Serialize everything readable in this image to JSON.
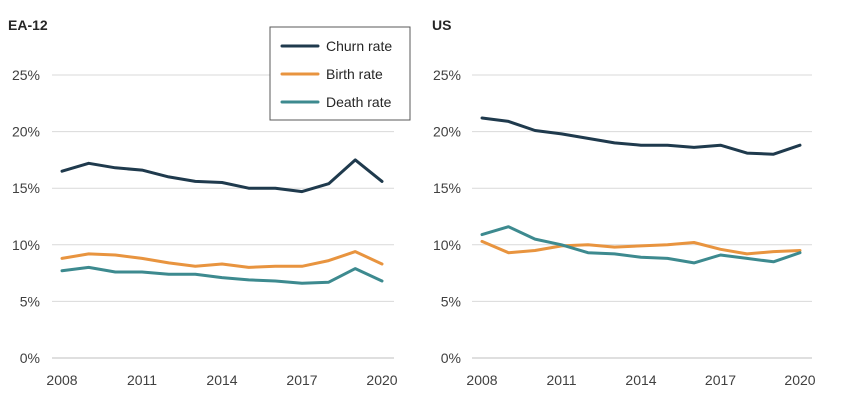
{
  "legend": [
    {
      "name": "Churn rate",
      "color": "#1f3a4d"
    },
    {
      "name": "Birth rate",
      "color": "#e8943f"
    },
    {
      "name": "Death rate",
      "color": "#3d8a8f"
    }
  ],
  "chart_data": [
    {
      "type": "line",
      "title": "EA-12",
      "x": [
        2008,
        2009,
        2010,
        2011,
        2012,
        2013,
        2014,
        2015,
        2016,
        2017,
        2018,
        2019,
        2020
      ],
      "xticks": [
        "2008",
        "2011",
        "2014",
        "2017",
        "2020"
      ],
      "yticks": [
        "0%",
        "5%",
        "10%",
        "15%",
        "20%",
        "25%"
      ],
      "ylim": [
        0,
        25
      ],
      "grid": true,
      "legend_position": "top-right",
      "series": [
        {
          "name": "Churn rate",
          "color": "#1f3a4d",
          "values": [
            16.5,
            17.2,
            16.8,
            16.6,
            16.0,
            15.6,
            15.5,
            15.0,
            15.0,
            14.7,
            15.4,
            17.5,
            15.6
          ]
        },
        {
          "name": "Birth rate",
          "color": "#e8943f",
          "values": [
            8.8,
            9.2,
            9.1,
            8.8,
            8.4,
            8.1,
            8.3,
            8.0,
            8.1,
            8.1,
            8.6,
            9.4,
            8.3
          ]
        },
        {
          "name": "Death rate",
          "color": "#3d8a8f",
          "values": [
            7.7,
            8.0,
            7.6,
            7.6,
            7.4,
            7.4,
            7.1,
            6.9,
            6.8,
            6.6,
            6.7,
            7.9,
            6.8
          ]
        }
      ]
    },
    {
      "type": "line",
      "title": "US",
      "x": [
        2008,
        2009,
        2010,
        2011,
        2012,
        2013,
        2014,
        2015,
        2016,
        2017,
        2018,
        2019,
        2020
      ],
      "xticks": [
        "2008",
        "2011",
        "2014",
        "2017",
        "2020"
      ],
      "yticks": [
        "0%",
        "5%",
        "10%",
        "15%",
        "20%",
        "25%"
      ],
      "ylim": [
        0,
        25
      ],
      "grid": true,
      "series": [
        {
          "name": "Churn rate",
          "color": "#1f3a4d",
          "values": [
            21.2,
            20.9,
            20.1,
            19.8,
            19.4,
            19.0,
            18.8,
            18.8,
            18.6,
            18.8,
            18.1,
            18.0,
            18.8
          ]
        },
        {
          "name": "Birth rate",
          "color": "#e8943f",
          "values": [
            10.3,
            9.3,
            9.5,
            9.9,
            10.0,
            9.8,
            9.9,
            10.0,
            10.2,
            9.6,
            9.2,
            9.4,
            9.5
          ]
        },
        {
          "name": "Death rate",
          "color": "#3d8a8f",
          "values": [
            10.9,
            11.6,
            10.5,
            10.0,
            9.3,
            9.2,
            8.9,
            8.8,
            8.4,
            9.1,
            8.8,
            8.5,
            9.3
          ]
        }
      ]
    }
  ]
}
